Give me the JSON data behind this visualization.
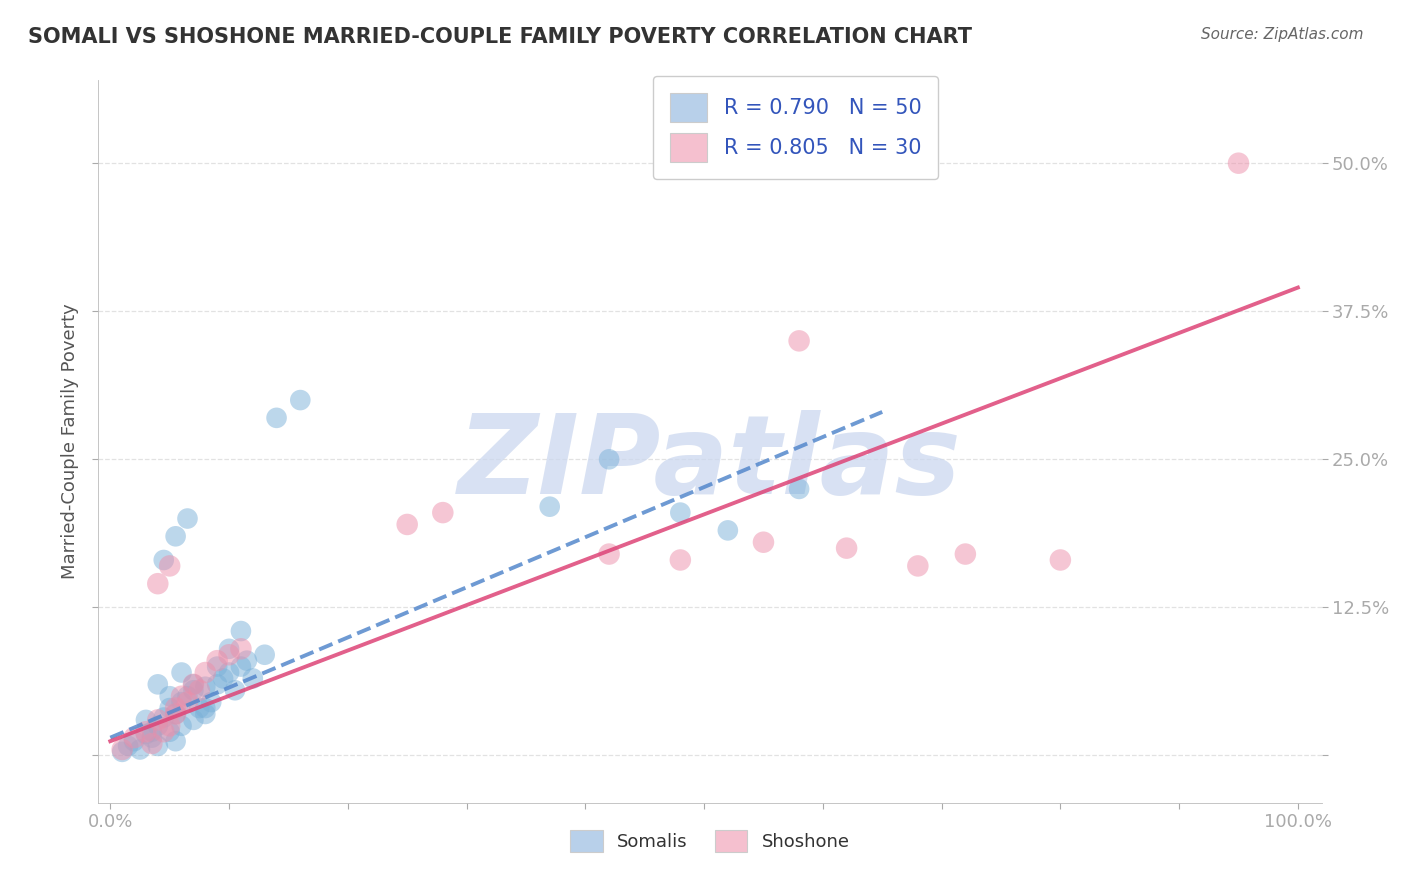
{
  "title": "SOMALI VS SHOSHONE MARRIED-COUPLE FAMILY POVERTY CORRELATION CHART",
  "source_text": "Source: ZipAtlas.com",
  "ylabel": "Married-Couple Family Poverty",
  "xlim": [
    -1,
    102
  ],
  "ylim": [
    -4,
    57
  ],
  "ytick_positions": [
    0,
    12.5,
    25.0,
    37.5,
    50.0
  ],
  "ytick_labels": [
    "",
    "12.5%",
    "25.0%",
    "37.5%",
    "50.0%"
  ],
  "xtick_positions": [
    0,
    10,
    20,
    30,
    40,
    50,
    60,
    70,
    80,
    90,
    100
  ],
  "xtick_labels": [
    "0.0%",
    "",
    "",
    "",
    "",
    "",
    "",
    "",
    "",
    "",
    "100.0%"
  ],
  "legend_r_entries": [
    {
      "label": "R = 0.790   N = 50",
      "facecolor": "#b8d0ea"
    },
    {
      "label": "R = 0.805   N = 30",
      "facecolor": "#f5c0cf"
    }
  ],
  "legend_bottom_labels": [
    "Somalis",
    "Shoshone"
  ],
  "legend_bottom_colors": [
    "#b8d0ea",
    "#f5c0cf"
  ],
  "somali_color": "#7ab0d8",
  "shoshone_color": "#ec8faa",
  "trend_somali_color": "#5588cc",
  "trend_shoshone_color": "#dd4477",
  "watermark_text": "ZIPatlas",
  "watermark_color": "#ccd8ef",
  "background_color": "#ffffff",
  "grid_color": "#dddddd",
  "title_color": "#333333",
  "axis_label_color": "#555555",
  "tick_color": "#3355bb",
  "source_color": "#666666",
  "somali_x": [
    1.0,
    1.5,
    2.0,
    2.5,
    3.0,
    3.0,
    3.5,
    4.0,
    4.0,
    4.5,
    5.0,
    5.0,
    5.5,
    5.5,
    6.0,
    6.0,
    6.5,
    7.0,
    7.0,
    7.5,
    8.0,
    8.0,
    8.5,
    9.0,
    9.5,
    10.0,
    10.5,
    11.0,
    11.5,
    12.0,
    13.0,
    3.5,
    4.0,
    5.0,
    6.0,
    7.0,
    8.0,
    9.0,
    10.0,
    11.0,
    37.0,
    42.0,
    48.0,
    52.0,
    58.0,
    4.5,
    5.5,
    6.5,
    14.0,
    16.0
  ],
  "somali_y": [
    0.3,
    0.8,
    1.2,
    0.5,
    1.8,
    3.0,
    1.5,
    0.8,
    2.5,
    3.2,
    2.0,
    4.0,
    3.5,
    1.2,
    4.5,
    2.5,
    5.0,
    3.0,
    5.5,
    4.0,
    5.8,
    3.5,
    4.5,
    6.0,
    6.5,
    7.0,
    5.5,
    7.5,
    8.0,
    6.5,
    8.5,
    2.0,
    6.0,
    5.0,
    7.0,
    6.0,
    4.0,
    7.5,
    9.0,
    10.5,
    21.0,
    25.0,
    20.5,
    19.0,
    22.5,
    16.5,
    18.5,
    20.0,
    28.5,
    30.0
  ],
  "shoshone_x": [
    1.0,
    2.0,
    3.0,
    4.0,
    5.0,
    5.5,
    6.0,
    7.0,
    8.0,
    9.0,
    10.0,
    11.0,
    3.5,
    4.5,
    5.5,
    6.5,
    7.5,
    4.0,
    5.0,
    25.0,
    28.0,
    42.0,
    48.0,
    55.0,
    58.0,
    62.0,
    68.0,
    72.0,
    80.0,
    95.0
  ],
  "shoshone_y": [
    0.5,
    1.5,
    2.0,
    3.0,
    2.5,
    4.0,
    5.0,
    6.0,
    7.0,
    8.0,
    8.5,
    9.0,
    1.0,
    2.0,
    3.5,
    4.5,
    5.5,
    14.5,
    16.0,
    19.5,
    20.5,
    17.0,
    16.5,
    18.0,
    35.0,
    17.5,
    16.0,
    17.0,
    16.5,
    50.0
  ],
  "somali_trend_x": [
    0,
    65
  ],
  "somali_trend_y": [
    1.5,
    29.0
  ],
  "shoshone_trend_x": [
    0,
    100
  ],
  "shoshone_trend_y": [
    1.2,
    39.5
  ]
}
